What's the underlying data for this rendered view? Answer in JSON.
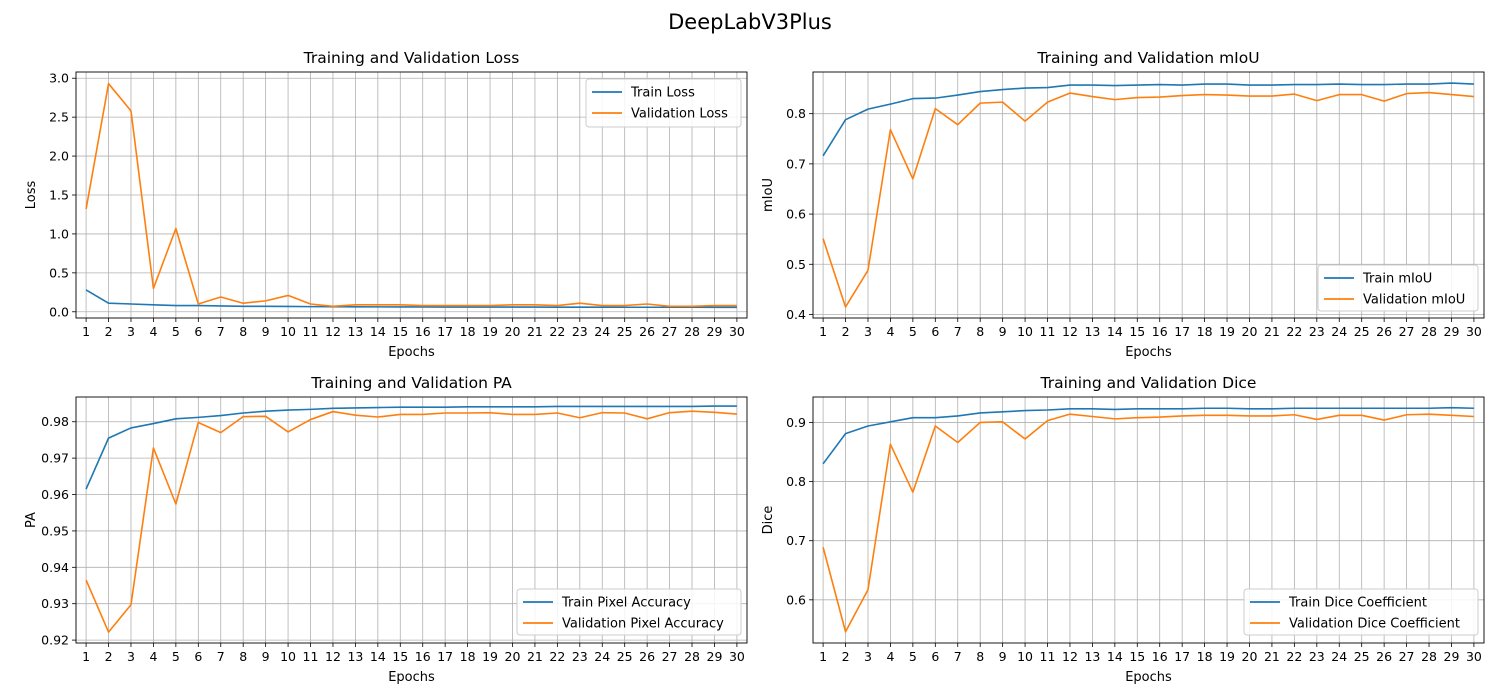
{
  "figure": {
    "title": "DeepLabV3Plus"
  },
  "colors": {
    "train": "#1f77b4",
    "validation": "#ff7f0e",
    "grid": "#b0b0b0"
  },
  "chart_data": [
    {
      "type": "line",
      "title": "Training and Validation Loss",
      "xlabel": "Epochs",
      "ylabel": "Loss",
      "x": [
        1,
        2,
        3,
        4,
        5,
        6,
        7,
        8,
        9,
        10,
        11,
        12,
        13,
        14,
        15,
        16,
        17,
        18,
        19,
        20,
        21,
        22,
        23,
        24,
        25,
        26,
        27,
        28,
        29,
        30
      ],
      "xlim": [
        0.55,
        30.45
      ],
      "ylim": [
        -0.08,
        3.08
      ],
      "yticks": [
        0.0,
        0.5,
        1.0,
        1.5,
        2.0,
        2.5,
        3.0
      ],
      "ytick_labels": [
        "0.0",
        "0.5",
        "1.0",
        "1.5",
        "2.0",
        "2.5",
        "3.0"
      ],
      "grid": true,
      "legend": "upper right",
      "series": [
        {
          "name": "Train Loss",
          "color": "#1f77b4",
          "values": [
            0.28,
            0.11,
            0.1,
            0.09,
            0.08,
            0.08,
            0.075,
            0.07,
            0.07,
            0.068,
            0.066,
            0.065,
            0.064,
            0.063,
            0.062,
            0.062,
            0.061,
            0.061,
            0.06,
            0.06,
            0.06,
            0.059,
            0.059,
            0.059,
            0.058,
            0.058,
            0.058,
            0.058,
            0.057,
            0.057
          ]
        },
        {
          "name": "Validation Loss",
          "color": "#ff7f0e",
          "values": [
            1.32,
            2.93,
            2.58,
            0.3,
            1.07,
            0.1,
            0.19,
            0.11,
            0.14,
            0.21,
            0.1,
            0.07,
            0.09,
            0.09,
            0.09,
            0.08,
            0.08,
            0.08,
            0.08,
            0.09,
            0.09,
            0.08,
            0.11,
            0.08,
            0.08,
            0.1,
            0.07,
            0.07,
            0.08,
            0.08
          ]
        }
      ]
    },
    {
      "type": "line",
      "title": "Training and Validation mIoU",
      "xlabel": "Epochs",
      "ylabel": "mIoU",
      "x": [
        1,
        2,
        3,
        4,
        5,
        6,
        7,
        8,
        9,
        10,
        11,
        12,
        13,
        14,
        15,
        16,
        17,
        18,
        19,
        20,
        21,
        22,
        23,
        24,
        25,
        26,
        27,
        28,
        29,
        30
      ],
      "xlim": [
        0.55,
        30.45
      ],
      "ylim": [
        0.393,
        0.883
      ],
      "yticks": [
        0.4,
        0.5,
        0.6,
        0.7,
        0.8
      ],
      "ytick_labels": [
        "0.4",
        "0.5",
        "0.6",
        "0.7",
        "0.8"
      ],
      "grid": true,
      "legend": "lower right",
      "series": [
        {
          "name": "Train mIoU",
          "color": "#1f77b4",
          "values": [
            0.716,
            0.788,
            0.809,
            0.819,
            0.83,
            0.831,
            0.837,
            0.844,
            0.848,
            0.851,
            0.852,
            0.857,
            0.857,
            0.856,
            0.857,
            0.858,
            0.857,
            0.859,
            0.859,
            0.857,
            0.857,
            0.858,
            0.858,
            0.859,
            0.858,
            0.858,
            0.859,
            0.859,
            0.861,
            0.859
          ]
        },
        {
          "name": "Validation mIoU",
          "color": "#ff7f0e",
          "values": [
            0.551,
            0.415,
            0.488,
            0.768,
            0.67,
            0.81,
            0.778,
            0.821,
            0.823,
            0.785,
            0.823,
            0.841,
            0.834,
            0.828,
            0.832,
            0.833,
            0.836,
            0.838,
            0.837,
            0.835,
            0.835,
            0.839,
            0.826,
            0.838,
            0.838,
            0.825,
            0.84,
            0.842,
            0.838,
            0.834
          ]
        }
      ]
    },
    {
      "type": "line",
      "title": "Training and Validation PA",
      "xlabel": "Epochs",
      "ylabel": "PA",
      "x": [
        1,
        2,
        3,
        4,
        5,
        6,
        7,
        8,
        9,
        10,
        11,
        12,
        13,
        14,
        15,
        16,
        17,
        18,
        19,
        20,
        21,
        22,
        23,
        24,
        25,
        26,
        27,
        28,
        29,
        30
      ],
      "xlim": [
        0.55,
        30.45
      ],
      "ylim": [
        0.9192,
        0.9868
      ],
      "yticks": [
        0.92,
        0.93,
        0.94,
        0.95,
        0.96,
        0.97,
        0.98
      ],
      "ytick_labels": [
        "0.92",
        "0.93",
        "0.94",
        "0.95",
        "0.96",
        "0.97",
        "0.98"
      ],
      "grid": true,
      "legend": "lower right",
      "series": [
        {
          "name": "Train Pixel Accuracy",
          "color": "#1f77b4",
          "values": [
            0.9615,
            0.9755,
            0.9783,
            0.9795,
            0.9808,
            0.9812,
            0.9817,
            0.9824,
            0.9829,
            0.9832,
            0.9834,
            0.9837,
            0.9838,
            0.9839,
            0.984,
            0.984,
            0.984,
            0.9841,
            0.9841,
            0.9841,
            0.9841,
            0.9842,
            0.9842,
            0.9842,
            0.9842,
            0.9842,
            0.9842,
            0.9842,
            0.9843,
            0.9843
          ]
        },
        {
          "name": "Validation Pixel Accuracy",
          "color": "#ff7f0e",
          "values": [
            0.9365,
            0.9222,
            0.9297,
            0.9728,
            0.9574,
            0.9798,
            0.977,
            0.9814,
            0.9815,
            0.9772,
            0.9806,
            0.9828,
            0.9818,
            0.9813,
            0.982,
            0.982,
            0.9824,
            0.9824,
            0.9825,
            0.982,
            0.982,
            0.9824,
            0.9811,
            0.9825,
            0.9824,
            0.9808,
            0.9825,
            0.9829,
            0.9826,
            0.9821
          ]
        }
      ]
    },
    {
      "type": "line",
      "title": "Training and Validation Dice",
      "xlabel": "Epochs",
      "ylabel": "Dice",
      "x": [
        1,
        2,
        3,
        4,
        5,
        6,
        7,
        8,
        9,
        10,
        11,
        12,
        13,
        14,
        15,
        16,
        17,
        18,
        19,
        20,
        21,
        22,
        23,
        24,
        25,
        26,
        27,
        28,
        29,
        30
      ],
      "xlim": [
        0.55,
        30.45
      ],
      "ylim": [
        0.527,
        0.943
      ],
      "yticks": [
        0.6,
        0.7,
        0.8,
        0.9
      ],
      "ytick_labels": [
        "0.6",
        "0.7",
        "0.8",
        "0.9"
      ],
      "grid": true,
      "legend": "lower right",
      "series": [
        {
          "name": "Train Dice Coefficient",
          "color": "#1f77b4",
          "values": [
            0.83,
            0.881,
            0.894,
            0.901,
            0.908,
            0.908,
            0.911,
            0.916,
            0.918,
            0.92,
            0.921,
            0.923,
            0.923,
            0.922,
            0.923,
            0.923,
            0.923,
            0.924,
            0.924,
            0.923,
            0.923,
            0.924,
            0.924,
            0.924,
            0.924,
            0.924,
            0.924,
            0.924,
            0.925,
            0.924
          ]
        },
        {
          "name": "Validation Dice Coefficient",
          "color": "#ff7f0e",
          "values": [
            0.689,
            0.546,
            0.617,
            0.863,
            0.782,
            0.894,
            0.866,
            0.9,
            0.901,
            0.872,
            0.903,
            0.914,
            0.91,
            0.906,
            0.908,
            0.909,
            0.911,
            0.912,
            0.912,
            0.911,
            0.911,
            0.913,
            0.905,
            0.912,
            0.912,
            0.904,
            0.913,
            0.914,
            0.912,
            0.91
          ]
        }
      ]
    }
  ]
}
